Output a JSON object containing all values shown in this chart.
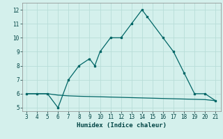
{
  "xlabel": "Humidex (Indice chaleur)",
  "x_upper": [
    3,
    4,
    5,
    6,
    7,
    8,
    9,
    9.5,
    10,
    11,
    12,
    13,
    14,
    14.5,
    16,
    17,
    18,
    19,
    20,
    21
  ],
  "y_upper": [
    6,
    6,
    6,
    5,
    7,
    8,
    8.5,
    8,
    9,
    10,
    10,
    11,
    12,
    11.5,
    10,
    9,
    7.5,
    6,
    6,
    5.5
  ],
  "x_lower": [
    3,
    4,
    5,
    6,
    7,
    8,
    9,
    10,
    11,
    12,
    13,
    14,
    15,
    16,
    17,
    18,
    19,
    20,
    21
  ],
  "y_lower": [
    6.0,
    6.0,
    6.0,
    5.9,
    5.85,
    5.82,
    5.8,
    5.78,
    5.76,
    5.74,
    5.72,
    5.7,
    5.68,
    5.66,
    5.64,
    5.62,
    5.6,
    5.58,
    5.5
  ],
  "line_color": "#006666",
  "bg_color": "#d4f0ec",
  "grid_color": "#b8ddd8",
  "ylim": [
    4.75,
    12.5
  ],
  "xlim": [
    2.6,
    21.5
  ],
  "yticks": [
    5,
    6,
    7,
    8,
    9,
    10,
    11,
    12
  ],
  "xticks": [
    3,
    4,
    5,
    6,
    7,
    8,
    9,
    10,
    11,
    12,
    13,
    14,
    15,
    16,
    17,
    18,
    19,
    20,
    21
  ]
}
